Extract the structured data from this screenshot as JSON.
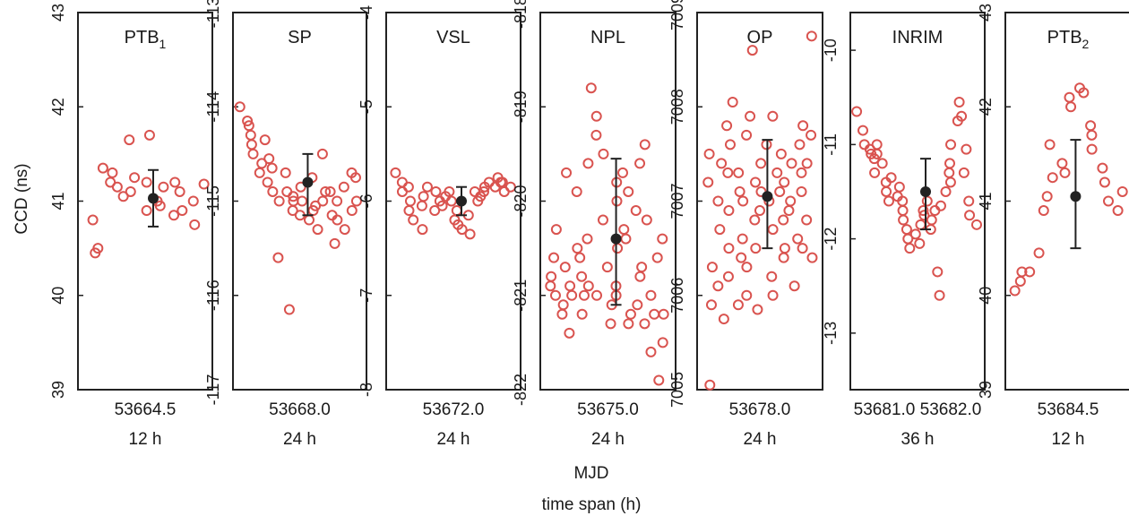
{
  "figure": {
    "ylabel": "CCD (ns)",
    "xlabel": "MJD",
    "xlabel2": "time span (h)",
    "marker_color": "#d9534f",
    "mean_color": "#222222"
  },
  "chart_data": [
    {
      "type": "scatter",
      "title": "PTB",
      "title_sub": "1",
      "ylim": [
        39,
        43
      ],
      "yticks": [
        "39",
        "40",
        "41",
        "42",
        "43"
      ],
      "xtick": "53664.5",
      "span": "12 h",
      "mean": 41.03,
      "err_low": 40.73,
      "err_high": 41.33,
      "values": [
        40.8,
        40.5,
        40.45,
        41.35,
        41.3,
        41.2,
        41.15,
        41.05,
        41.65,
        41.1,
        41.25,
        40.9,
        41.2,
        41.7,
        41.0,
        40.95,
        41.15,
        40.85,
        41.2,
        41.1,
        40.9,
        40.75,
        41.0,
        41.18
      ]
    },
    {
      "type": "scatter",
      "title": "SP",
      "title_sub": "",
      "ylim": [
        -117,
        -113
      ],
      "yticks": [
        "-117",
        "-116",
        "-115",
        "-114",
        "-113"
      ],
      "xtick": "53668.0",
      "span": "24 h",
      "mean": -114.8,
      "err_low": -115.15,
      "err_high": -114.5,
      "values": [
        -114.0,
        -114.2,
        -114.3,
        -114.15,
        -114.4,
        -114.5,
        -114.6,
        -114.7,
        -114.35,
        -114.55,
        -114.8,
        -114.65,
        -114.9,
        -115.0,
        -115.6,
        -114.7,
        -116.15,
        -114.9,
        -115.0,
        -115.1,
        -114.95,
        -115.15,
        -115.0,
        -114.85,
        -115.2,
        -114.75,
        -115.1,
        -115.05,
        -115.3,
        -114.9,
        -115.0,
        -114.5,
        -115.15,
        -115.45,
        -114.9,
        -115.0,
        -115.2,
        -115.3,
        -114.85,
        -115.1,
        -114.7,
        -115.0,
        -114.75
      ]
    },
    {
      "type": "scatter",
      "title": "VSL",
      "title_sub": "",
      "ylim": [
        -8,
        -4
      ],
      "yticks": [
        "-8",
        "-7",
        "-6",
        "-5",
        "-4"
      ],
      "xtick": "53672.0",
      "span": "24 h",
      "mean": -6.0,
      "err_low": -6.15,
      "err_high": -5.85,
      "values": [
        -5.7,
        -5.8,
        -5.9,
        -5.85,
        -6.0,
        -6.1,
        -6.2,
        -5.95,
        -6.05,
        -6.3,
        -5.85,
        -5.9,
        -6.0,
        -6.1,
        -5.95,
        -6.05,
        -5.9,
        -6.2,
        -6.0,
        -6.1,
        -6.25,
        -6.3,
        -6.35,
        -6.15,
        -6.0,
        -5.9,
        -5.95,
        -5.85,
        -5.9,
        -5.8,
        -5.85,
        -5.8,
        -5.75,
        -5.9,
        -5.8,
        -5.85
      ]
    },
    {
      "type": "scatter",
      "title": "NPL",
      "title_sub": "",
      "ylim": [
        -822,
        -818
      ],
      "yticks": [
        "-822",
        "-821",
        "-820",
        "-819",
        "-818"
      ],
      "xtick": "53675.0",
      "span": "24 h",
      "mean": -820.4,
      "err_low": -821.1,
      "err_high": -819.55,
      "values": [
        -820.8,
        -820.6,
        -820.9,
        -821.0,
        -821.2,
        -820.3,
        -821.1,
        -819.7,
        -820.7,
        -821.4,
        -820.9,
        -821.0,
        -820.5,
        -819.9,
        -820.6,
        -821.2,
        -820.8,
        -821.0,
        -820.4,
        -819.6,
        -820.9,
        -821.0,
        -818.8,
        -819.1,
        -819.3,
        -819.5,
        -820.2,
        -820.7,
        -821.3,
        -821.1,
        -820.9,
        -819.8,
        -820.5,
        -820.0,
        -821.0,
        -820.3,
        -819.7,
        -821.2,
        -820.4,
        -819.9,
        -821.3,
        -820.1,
        -821.1,
        -819.6,
        -820.8,
        -821.3,
        -820.7,
        -821.0,
        -819.4,
        -820.2,
        -821.2,
        -821.6,
        -821.9,
        -821.5,
        -820.6,
        -821.2,
        -820.4
      ]
    },
    {
      "type": "scatter",
      "title": "OP",
      "title_sub": "",
      "ylim": [
        7005,
        7009
      ],
      "yticks": [
        "7005",
        "7006",
        "7007",
        "7008",
        "7009"
      ],
      "xtick": "53678.0",
      "span": "24 h",
      "mean": 7007.05,
      "err_low": 7006.5,
      "err_high": 7007.65,
      "values": [
        7005.05,
        7007.5,
        7006.3,
        7007.2,
        7005.9,
        7006.7,
        7007.4,
        7006.1,
        7007.0,
        7007.8,
        7005.75,
        7006.5,
        7007.3,
        7008.05,
        7006.9,
        7006.2,
        7007.6,
        7007.1,
        7006.4,
        7005.9,
        7007.3,
        7007.0,
        7006.6,
        7006.0,
        7007.7,
        7006.3,
        7007.9,
        7007.2,
        7006.8,
        7008.6,
        7006.5,
        7007.1,
        7005.85,
        7006.9,
        7007.4,
        7007.0,
        7006.2,
        7007.6,
        7006.7,
        7007.3,
        7006.0,
        7007.9,
        7007.1,
        7006.4,
        7007.5,
        7006.8,
        7006.5,
        7007.2,
        7007.4,
        7006.9,
        7006.1,
        7007.0,
        7007.6,
        7006.6,
        7007.3,
        7007.8,
        7006.8,
        7007.1,
        7006.5,
        7007.4,
        7006.4,
        7007.7,
        7008.75
      ]
    },
    {
      "type": "scatter",
      "title": "INRIM",
      "title_sub": "",
      "ylim": [
        -13.6,
        -9.6
      ],
      "yticks": [
        "-13",
        "-12",
        "-11",
        "-10"
      ],
      "xtick": "53681.0   53682.0",
      "span": "36 h",
      "mean": -11.5,
      "err_low": -11.9,
      "err_high": -11.15,
      "values": [
        -10.65,
        -10.85,
        -11.0,
        -11.05,
        -11.1,
        -11.0,
        -11.15,
        -11.3,
        -11.1,
        -11.2,
        -11.4,
        -11.5,
        -11.6,
        -11.35,
        -11.45,
        -11.55,
        -11.7,
        -11.6,
        -11.8,
        -11.9,
        -12.0,
        -12.1,
        -11.95,
        -12.05,
        -11.85,
        -11.75,
        -11.7,
        -11.9,
        -11.6,
        -11.8,
        -11.7,
        -12.35,
        -12.6,
        -11.5,
        -11.65,
        -11.4,
        -11.3,
        -11.2,
        -11.0,
        -10.75,
        -10.55,
        -10.7,
        -11.05,
        -11.3,
        -11.6,
        -11.75,
        -11.85
      ]
    },
    {
      "type": "scatter",
      "title": "PTB",
      "title_sub": "2",
      "ylim": [
        39,
        43
      ],
      "yticks": [
        "39",
        "40",
        "41",
        "42",
        "43"
      ],
      "xtick": "53684.5",
      "span": "12 h",
      "mean": 41.05,
      "err_low": 40.5,
      "err_high": 41.65,
      "values": [
        40.05,
        40.15,
        40.25,
        40.25,
        40.45,
        40.9,
        41.05,
        41.25,
        41.6,
        41.4,
        41.3,
        42.0,
        42.1,
        42.2,
        42.15,
        41.8,
        41.7,
        41.55,
        41.35,
        41.2,
        41.0,
        40.9,
        41.1
      ]
    }
  ]
}
